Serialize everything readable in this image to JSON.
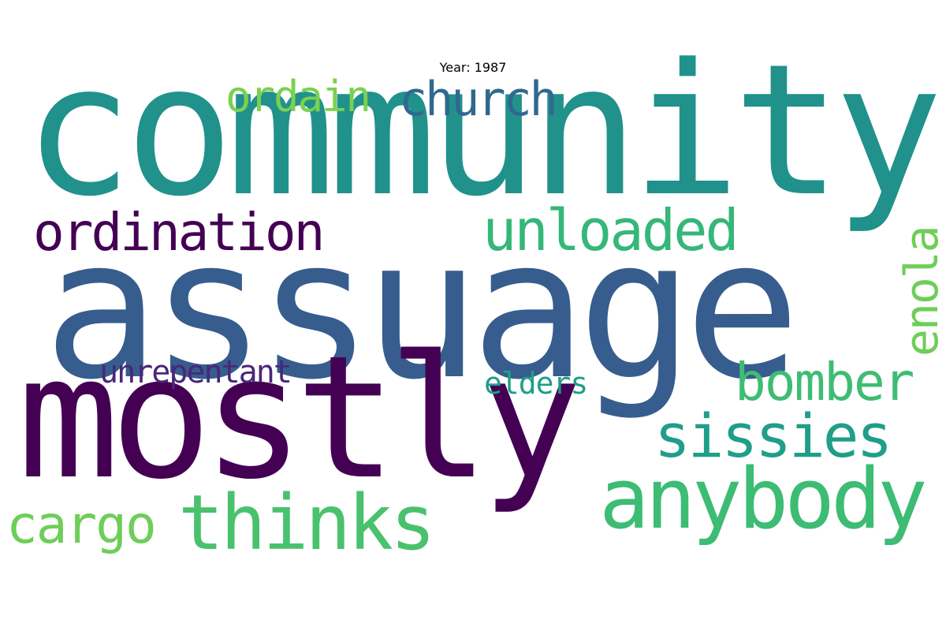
{
  "title": "Year: 1987",
  "words": {
    "community": "community",
    "assuage": "assuage",
    "mostly": "mostly",
    "thinks": "thinks",
    "anybody": "anybody",
    "sissies": "sissies",
    "bomber": "bomber",
    "unloaded": "unloaded",
    "ordination": "ordination",
    "church": "church",
    "ordain": "ordain",
    "unrepentant": "unrepentant",
    "elders": "elders",
    "cargo": "cargo",
    "enola": "enola"
  },
  "colors": {
    "background": "#ffffff",
    "palette": [
      "#440154",
      "#482878",
      "#31688e",
      "#365d8d",
      "#21918c",
      "#1f9e89",
      "#35b779",
      "#3dbc74",
      "#4ac16d",
      "#6ece58",
      "#7ad151"
    ]
  }
}
